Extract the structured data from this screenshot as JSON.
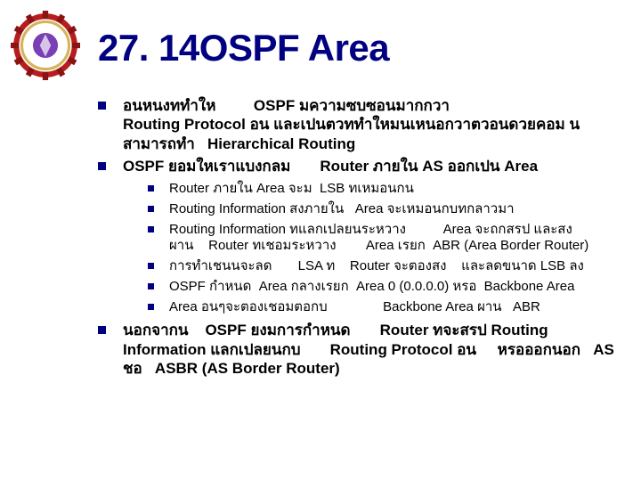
{
  "title": "27. 14OSPF Area",
  "title_color": "#000080",
  "title_fontsize": 42,
  "body_fontsize_lvl1": 17,
  "body_fontsize_lvl2": 15,
  "bullet_color": "#000080",
  "background_color": "#ffffff",
  "logo": {
    "outer_color": "#b81d1d",
    "gear_color": "#8a1414",
    "inner_ring": "#d6b45a",
    "inner_bg": "#ffffff",
    "center_color": "#7b3fb5"
  },
  "bullets": {
    "lvl1": [
      "อนหนงททำให&nbsp;&nbsp;&nbsp;&nbsp;&nbsp;&nbsp;&nbsp;&nbsp;&nbsp;OSPF มความซบซอนมากกวา<br>Routing Protocol อน และเปนตวททำใหมนเหนอกวาตวอนดวยคอม นสามารถทำ&nbsp;&nbsp;&nbsp;Hierarchical Routing",
      "OSPF ยอมใหเราแบงกลม&nbsp;&nbsp;&nbsp;&nbsp;&nbsp;&nbsp;&nbsp;Router ภายใน AS ออกเปน Area",
      "นอกจากน&nbsp;&nbsp;&nbsp;&nbsp;OSPF ยงมการกำหนด&nbsp;&nbsp;&nbsp;&nbsp;&nbsp;&nbsp;&nbsp;Router ทจะสรป Routing Information แลกเปลยนกบ&nbsp;&nbsp;&nbsp;&nbsp;&nbsp;&nbsp;&nbsp;Routing Protocol อน&nbsp;&nbsp;&nbsp;&nbsp;&nbsp;หรอออกนอก&nbsp;&nbsp;&nbsp;AS ชอ&nbsp;&nbsp;&nbsp;ASBR (AS Border Router)"
    ],
    "lvl2": [
      "Router ภายใน Area จะม&nbsp;&nbsp;LSB ทเหมอนกน",
      "Routing Information สงภายใน&nbsp;&nbsp;&nbsp;Area จะเหมอนกบทกลาวมา",
      "Routing Information ทแลกเปลยนระหวาง&nbsp;&nbsp;&nbsp;&nbsp;&nbsp;&nbsp;&nbsp;&nbsp;&nbsp;&nbsp;Area จะถกสรป และสงผาน&nbsp;&nbsp;&nbsp;&nbsp;Router ทเชอมระหวาง&nbsp;&nbsp;&nbsp;&nbsp;&nbsp;&nbsp;&nbsp;&nbsp;Area เรยก&nbsp;&nbsp;ABR (Area Border Router)",
      "การทำเชนนจะลด&nbsp;&nbsp;&nbsp;&nbsp;&nbsp;&nbsp;&nbsp;LSA ท&nbsp;&nbsp;&nbsp;&nbsp;Router จะตองสง&nbsp;&nbsp;&nbsp;&nbsp;และลดขนาด LSB ลง",
      "OSPF กำหนด&nbsp;&nbsp;Area กลางเรยก&nbsp;&nbsp;Area 0 (0.0.0.0) หรอ&nbsp;&nbsp;Backbone Area",
      "Area อนๆจะตองเชอมตอกบ&nbsp;&nbsp;&nbsp;&nbsp;&nbsp;&nbsp;&nbsp;&nbsp;&nbsp;&nbsp;&nbsp;&nbsp;&nbsp;&nbsp;&nbsp;Backbone Area ผาน&nbsp;&nbsp;&nbsp;ABR"
    ]
  }
}
